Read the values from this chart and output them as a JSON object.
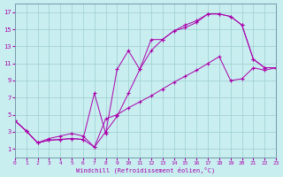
{
  "bg_color": "#c8eef0",
  "line_color": "#aa00aa",
  "xlim": [
    0,
    23
  ],
  "ylim": [
    0,
    18
  ],
  "xticks": [
    0,
    1,
    2,
    3,
    4,
    5,
    6,
    7,
    8,
    9,
    10,
    11,
    12,
    13,
    14,
    15,
    16,
    17,
    18,
    19,
    20,
    21,
    22,
    23
  ],
  "yticks": [
    1,
    3,
    5,
    7,
    9,
    11,
    13,
    15,
    17
  ],
  "xlabel": "Windchill (Refroidissement éolien,°C)",
  "line1_x": [
    0,
    1,
    2,
    3,
    4,
    5,
    6,
    7,
    8,
    9,
    10,
    11,
    12,
    13,
    14,
    15,
    16,
    17,
    18,
    19,
    20,
    21,
    22,
    23
  ],
  "line1_y": [
    4.3,
    3.1,
    1.7,
    2.0,
    2.1,
    2.2,
    2.1,
    1.2,
    3.0,
    4.8,
    7.5,
    10.3,
    12.5,
    13.8,
    14.8,
    15.2,
    15.8,
    16.8,
    16.8,
    16.5,
    15.5,
    11.5,
    10.5,
    10.5
  ],
  "line2_x": [
    0,
    1,
    2,
    3,
    4,
    5,
    6,
    7,
    8,
    9,
    10,
    11,
    12,
    13,
    14,
    15,
    16,
    17,
    18,
    19,
    20,
    21,
    22,
    23
  ],
  "line2_y": [
    4.3,
    3.1,
    1.7,
    2.0,
    2.1,
    2.2,
    2.1,
    7.5,
    2.8,
    10.3,
    12.5,
    10.3,
    13.8,
    13.8,
    14.8,
    15.5,
    16.0,
    16.8,
    16.8,
    16.5,
    15.5,
    11.5,
    10.5,
    10.5
  ],
  "line3_x": [
    0,
    1,
    2,
    3,
    4,
    5,
    6,
    7,
    8,
    9,
    10,
    11,
    12,
    13,
    14,
    15,
    16,
    17,
    18,
    19,
    20,
    21,
    22,
    23
  ],
  "line3_y": [
    4.3,
    3.1,
    1.7,
    2.2,
    2.5,
    2.8,
    2.5,
    1.2,
    4.5,
    5.0,
    5.8,
    6.5,
    7.2,
    8.0,
    8.8,
    9.5,
    10.2,
    11.0,
    11.8,
    9.0,
    9.2,
    10.5,
    10.2,
    10.5
  ]
}
